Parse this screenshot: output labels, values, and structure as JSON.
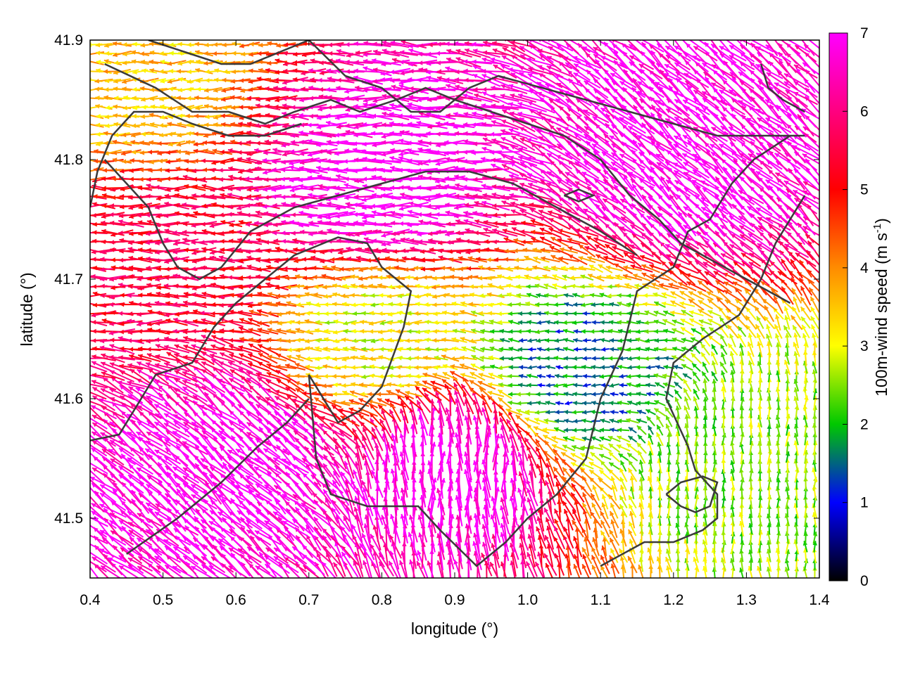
{
  "chart_data": {
    "type": "vector-field",
    "xlabel": "longitude (°)",
    "ylabel": "latitude (°)",
    "xlim": [
      0.4,
      1.4
    ],
    "ylim": [
      41.45,
      41.9
    ],
    "x_ticks": [
      "0.4",
      "0.5",
      "0.6",
      "0.7",
      "0.8",
      "0.9",
      "1.0",
      "1.1",
      "1.2",
      "1.3",
      "1.4"
    ],
    "y_ticks": [
      "41.5",
      "41.6",
      "41.7",
      "41.8",
      "41.9"
    ],
    "colorbar": {
      "label_main": "100m-wind speed (m s",
      "label_sup": "-1",
      "label_end": ")",
      "range": [
        0,
        7
      ],
      "ticks": [
        "0",
        "1",
        "2",
        "3",
        "4",
        "5",
        "6",
        "7"
      ],
      "colormap": [
        "#000000",
        "#0000ff",
        "#00c800",
        "#ffff00",
        "#ff8c00",
        "#ff0000",
        "#ff00ff"
      ]
    },
    "grid": false,
    "legend": "none",
    "wind_regions": [
      {
        "lon": 1.3,
        "lat": 41.55,
        "speed": 2.5,
        "direction": "north"
      },
      {
        "lon": 1.06,
        "lat": 41.62,
        "speed": 1.5,
        "direction": "west"
      },
      {
        "lon": 0.8,
        "lat": 41.65,
        "speed": 3.0,
        "direction": "west"
      },
      {
        "lon": 0.5,
        "lat": 41.72,
        "speed": 5.5,
        "direction": "west"
      },
      {
        "lon": 0.45,
        "lat": 41.87,
        "speed": 3.5,
        "direction": "west"
      },
      {
        "lon": 0.8,
        "lat": 41.78,
        "speed": 7.0,
        "direction": "west"
      },
      {
        "lon": 1.2,
        "lat": 41.8,
        "speed": 7.0,
        "direction": "northwest"
      },
      {
        "lon": 0.6,
        "lat": 41.55,
        "speed": 7.0,
        "direction": "northwest"
      },
      {
        "lon": 0.9,
        "lat": 41.55,
        "speed": 7.0,
        "direction": "north"
      }
    ],
    "contours": [
      [
        [
          0.4,
          41.565
        ],
        [
          0.44,
          41.57
        ],
        [
          0.47,
          41.6
        ],
        [
          0.49,
          41.62
        ],
        [
          0.54,
          41.63
        ],
        [
          0.57,
          41.66
        ],
        [
          0.6,
          41.68
        ],
        [
          0.64,
          41.7
        ],
        [
          0.68,
          41.72
        ],
        [
          0.74,
          41.735
        ],
        [
          0.78,
          41.73
        ],
        [
          0.8,
          41.71
        ],
        [
          0.84,
          41.69
        ],
        [
          0.83,
          41.66
        ],
        [
          0.8,
          41.61
        ],
        [
          0.77,
          41.59
        ],
        [
          0.74,
          41.58
        ],
        [
          0.72,
          41.6
        ],
        [
          0.7,
          41.62
        ],
        [
          0.71,
          41.55
        ],
        [
          0.73,
          41.52
        ],
        [
          0.78,
          41.51
        ],
        [
          0.85,
          41.51
        ],
        [
          0.88,
          41.49
        ],
        [
          0.93,
          41.46
        ],
        [
          0.97,
          41.48
        ],
        [
          1.0,
          41.5
        ],
        [
          1.04,
          41.52
        ],
        [
          1.08,
          41.55
        ],
        [
          1.1,
          41.6
        ],
        [
          1.13,
          41.64
        ],
        [
          1.15,
          41.69
        ],
        [
          1.2,
          41.71
        ],
        [
          1.22,
          41.74
        ],
        [
          1.25,
          41.75
        ],
        [
          1.28,
          41.78
        ],
        [
          1.31,
          41.8
        ],
        [
          1.36,
          41.82
        ]
      ],
      [
        [
          0.42,
          41.88
        ],
        [
          0.49,
          41.86
        ],
        [
          0.54,
          41.84
        ],
        [
          0.59,
          41.84
        ],
        [
          0.64,
          41.83
        ],
        [
          0.68,
          41.84
        ],
        [
          0.73,
          41.85
        ],
        [
          0.77,
          41.84
        ],
        [
          0.82,
          41.85
        ],
        [
          0.86,
          41.86
        ],
        [
          0.9,
          41.85
        ],
        [
          0.95,
          41.84
        ],
        [
          1.0,
          41.83
        ],
        [
          1.05,
          41.82
        ],
        [
          1.1,
          41.8
        ],
        [
          1.14,
          41.77
        ],
        [
          1.18,
          41.75
        ],
        [
          1.21,
          41.73
        ],
        [
          1.24,
          41.72
        ],
        [
          1.3,
          41.7
        ],
        [
          1.36,
          41.68
        ]
      ],
      [
        [
          0.7,
          41.9
        ],
        [
          0.75,
          41.87
        ],
        [
          0.8,
          41.86
        ],
        [
          0.84,
          41.84
        ],
        [
          0.88,
          41.84
        ],
        [
          0.92,
          41.86
        ],
        [
          0.96,
          41.87
        ],
        [
          1.02,
          41.86
        ],
        [
          1.08,
          41.85
        ],
        [
          1.14,
          41.84
        ],
        [
          1.2,
          41.83
        ],
        [
          1.26,
          41.82
        ],
        [
          1.32,
          41.82
        ],
        [
          1.38,
          41.82
        ]
      ],
      [
        [
          0.42,
          41.8
        ],
        [
          0.45,
          41.78
        ],
        [
          0.48,
          41.76
        ],
        [
          0.5,
          41.73
        ],
        [
          0.52,
          41.71
        ],
        [
          0.55,
          41.7
        ],
        [
          0.58,
          41.71
        ],
        [
          0.62,
          41.74
        ],
        [
          0.68,
          41.76
        ],
        [
          0.74,
          41.77
        ],
        [
          0.8,
          41.78
        ],
        [
          0.86,
          41.79
        ],
        [
          0.92,
          41.79
        ],
        [
          0.98,
          41.78
        ],
        [
          1.04,
          41.76
        ],
        [
          1.1,
          41.74
        ],
        [
          1.15,
          41.72
        ]
      ],
      [
        [
          0.45,
          41.47
        ],
        [
          0.52,
          41.5
        ],
        [
          0.58,
          41.53
        ],
        [
          0.63,
          41.56
        ],
        [
          0.67,
          41.58
        ],
        [
          0.7,
          41.6
        ]
      ],
      [
        [
          1.1,
          41.46
        ],
        [
          1.16,
          41.48
        ],
        [
          1.2,
          41.48
        ],
        [
          1.24,
          41.49
        ],
        [
          1.26,
          41.5
        ],
        [
          1.26,
          41.52
        ],
        [
          1.23,
          41.54
        ],
        [
          1.22,
          41.56
        ],
        [
          1.19,
          41.6
        ],
        [
          1.2,
          41.63
        ],
        [
          1.24,
          41.65
        ],
        [
          1.29,
          41.67
        ],
        [
          1.32,
          41.7
        ],
        [
          1.34,
          41.73
        ],
        [
          1.38,
          41.77
        ]
      ],
      [
        [
          1.19,
          41.52
        ],
        [
          1.21,
          41.51
        ],
        [
          1.23,
          41.505
        ],
        [
          1.25,
          41.51
        ],
        [
          1.26,
          41.53
        ],
        [
          1.24,
          41.535
        ],
        [
          1.21,
          41.53
        ],
        [
          1.19,
          41.52
        ]
      ],
      [
        [
          1.05,
          41.77
        ],
        [
          1.07,
          41.765
        ],
        [
          1.09,
          41.77
        ],
        [
          1.07,
          41.775
        ],
        [
          1.05,
          41.77
        ]
      ],
      [
        [
          0.4,
          41.76
        ],
        [
          0.41,
          41.79
        ],
        [
          0.43,
          41.82
        ],
        [
          0.46,
          41.84
        ],
        [
          0.5,
          41.84
        ],
        [
          0.54,
          41.83
        ],
        [
          0.59,
          41.82
        ],
        [
          0.64,
          41.82
        ],
        [
          0.69,
          41.83
        ]
      ],
      [
        [
          1.32,
          41.88
        ],
        [
          1.33,
          41.86
        ],
        [
          1.35,
          41.85
        ],
        [
          1.38,
          41.84
        ]
      ],
      [
        [
          0.48,
          41.9
        ],
        [
          0.53,
          41.89
        ],
        [
          0.58,
          41.88
        ],
        [
          0.62,
          41.88
        ],
        [
          0.66,
          41.89
        ],
        [
          0.7,
          41.9
        ]
      ]
    ]
  }
}
